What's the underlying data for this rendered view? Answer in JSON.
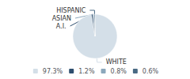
{
  "chart_data": {
    "type": "pie",
    "categories": [
      "WHITE",
      "A.I.",
      "ASIAN",
      "HISPANIC"
    ],
    "values": [
      97.3,
      1.2,
      0.8,
      0.6
    ],
    "value_labels": [
      "97.3%",
      "1.2%",
      "0.8%",
      "0.6%"
    ],
    "colors": [
      "#d4dfe8",
      "#2e4e6e",
      "#8ca8bc",
      "#4a6a84"
    ],
    "legend": "bottom"
  }
}
